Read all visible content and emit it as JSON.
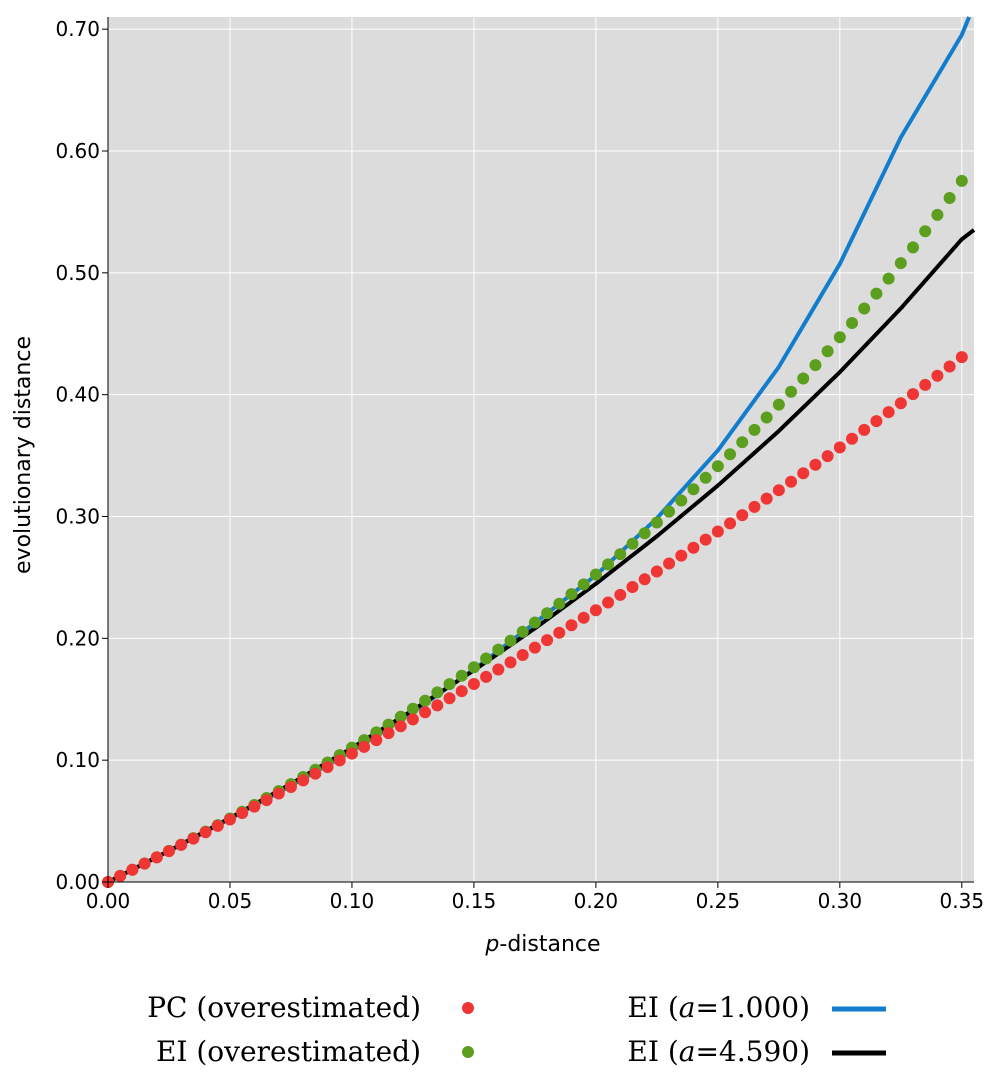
{
  "chart_data": {
    "type": "scatter",
    "title": "",
    "xlabel_italic": "p",
    "xlabel_rest": "-distance",
    "ylabel": "evolutionary distance",
    "xlim": [
      0,
      0.355
    ],
    "ylim": [
      0,
      0.71
    ],
    "x_ticks": [
      "0.00",
      "0.05",
      "0.10",
      "0.15",
      "0.20",
      "0.25",
      "0.30",
      "0.35"
    ],
    "y_ticks": [
      "0.00",
      "0.10",
      "0.20",
      "0.30",
      "0.40",
      "0.50",
      "0.60",
      "0.70"
    ],
    "grid": true,
    "legend_placement": "bottom",
    "series": [
      {
        "name": "PC (overestimated)",
        "kind": "points",
        "color": "#f03535",
        "x": [
          0.0,
          0.005,
          0.01,
          0.015,
          0.02,
          0.025,
          0.03,
          0.035,
          0.04,
          0.045,
          0.05,
          0.055,
          0.06,
          0.065,
          0.07,
          0.075,
          0.08,
          0.085,
          0.09,
          0.095,
          0.1,
          0.105,
          0.11,
          0.115,
          0.12,
          0.125,
          0.13,
          0.135,
          0.14,
          0.145,
          0.15,
          0.155,
          0.16,
          0.165,
          0.17,
          0.175,
          0.18,
          0.185,
          0.19,
          0.195,
          0.2,
          0.205,
          0.21,
          0.215,
          0.22,
          0.225,
          0.23,
          0.235,
          0.24,
          0.245,
          0.25,
          0.255,
          0.26,
          0.265,
          0.27,
          0.275,
          0.28,
          0.285,
          0.29,
          0.295,
          0.3,
          0.305,
          0.31,
          0.315,
          0.32,
          0.325,
          0.33,
          0.335,
          0.34,
          0.345,
          0.35
        ],
        "y": [
          0.0,
          0.005,
          0.0101,
          0.0151,
          0.0202,
          0.0253,
          0.0305,
          0.0356,
          0.0408,
          0.0461,
          0.0513,
          0.0566,
          0.0619,
          0.0672,
          0.0726,
          0.078,
          0.0834,
          0.0889,
          0.0943,
          0.0998,
          0.1054,
          0.1109,
          0.1165,
          0.1222,
          0.1278,
          0.1335,
          0.1393,
          0.145,
          0.1508,
          0.1567,
          0.1625,
          0.1684,
          0.1744,
          0.1803,
          0.1863,
          0.1924,
          0.1985,
          0.2046,
          0.2107,
          0.2169,
          0.2231,
          0.2294,
          0.2357,
          0.2421,
          0.2485,
          0.2549,
          0.2614,
          0.2679,
          0.2744,
          0.281,
          0.2877,
          0.2944,
          0.3011,
          0.3079,
          0.3147,
          0.3216,
          0.3285,
          0.3355,
          0.3425,
          0.3496,
          0.3567,
          0.3638,
          0.3711,
          0.3783,
          0.3857,
          0.393,
          0.4005,
          0.408,
          0.4155,
          0.4231,
          0.4308
        ]
      },
      {
        "name": "EI (overestimated)",
        "kind": "points",
        "color": "#5c9e1e",
        "x": [
          0.0,
          0.005,
          0.01,
          0.015,
          0.02,
          0.025,
          0.03,
          0.035,
          0.04,
          0.045,
          0.05,
          0.055,
          0.06,
          0.065,
          0.07,
          0.075,
          0.08,
          0.085,
          0.09,
          0.095,
          0.1,
          0.105,
          0.11,
          0.115,
          0.12,
          0.125,
          0.13,
          0.135,
          0.14,
          0.145,
          0.15,
          0.155,
          0.16,
          0.165,
          0.17,
          0.175,
          0.18,
          0.185,
          0.19,
          0.195,
          0.2,
          0.205,
          0.21,
          0.215,
          0.22,
          0.225,
          0.23,
          0.235,
          0.24,
          0.245,
          0.25,
          0.255,
          0.26,
          0.265,
          0.27,
          0.275,
          0.28,
          0.285,
          0.29,
          0.295,
          0.3,
          0.305,
          0.31,
          0.315,
          0.32,
          0.325,
          0.33,
          0.335,
          0.34,
          0.345,
          0.35
        ],
        "y": [
          0.0,
          0.005,
          0.0101,
          0.0152,
          0.0203,
          0.0255,
          0.0307,
          0.036,
          0.0413,
          0.0467,
          0.0521,
          0.0577,
          0.0632,
          0.0689,
          0.0746,
          0.0803,
          0.0862,
          0.0921,
          0.0981,
          0.1041,
          0.1103,
          0.1165,
          0.1228,
          0.1292,
          0.1356,
          0.1422,
          0.1488,
          0.1556,
          0.1624,
          0.1693,
          0.1763,
          0.1834,
          0.1907,
          0.198,
          0.2054,
          0.213,
          0.2206,
          0.2284,
          0.2363,
          0.2443,
          0.2524,
          0.2607,
          0.2691,
          0.2776,
          0.2863,
          0.2951,
          0.304,
          0.3131,
          0.3224,
          0.3318,
          0.3413,
          0.3511,
          0.361,
          0.3711,
          0.3813,
          0.3918,
          0.4024,
          0.4133,
          0.4243,
          0.4356,
          0.4471,
          0.4588,
          0.4707,
          0.4829,
          0.4953,
          0.508,
          0.5209,
          0.5341,
          0.5476,
          0.5614,
          0.5755
        ]
      },
      {
        "name": "EI (a=1.000)",
        "legend_prefix": "EI (",
        "legend_param": "a",
        "legend_value": "=1.000)",
        "kind": "line",
        "color": "#127dcc",
        "x": [
          0.0,
          0.025,
          0.05,
          0.075,
          0.1,
          0.125,
          0.15,
          0.175,
          0.2,
          0.225,
          0.25,
          0.275,
          0.3,
          0.325,
          0.35,
          0.353
        ],
        "y": [
          0.0,
          0.0254,
          0.0518,
          0.0791,
          0.1073,
          0.1393,
          0.1746,
          0.2127,
          0.2518,
          0.2985,
          0.3542,
          0.4228,
          0.5073,
          0.6112,
          0.6953,
          0.71
        ]
      },
      {
        "name": "EI (a=4.590)",
        "legend_prefix": "EI (",
        "legend_param": "a",
        "legend_value": "=4.590)",
        "kind": "line",
        "color": "#000000",
        "x": [
          0.0,
          0.025,
          0.05,
          0.075,
          0.1,
          0.125,
          0.15,
          0.175,
          0.2,
          0.225,
          0.25,
          0.275,
          0.3,
          0.325,
          0.35,
          0.355
        ],
        "y": [
          0.0,
          0.0256,
          0.0525,
          0.0806,
          0.1101,
          0.1411,
          0.1737,
          0.2082,
          0.2448,
          0.2838,
          0.3254,
          0.3702,
          0.4185,
          0.4708,
          0.5276,
          0.5352
        ]
      }
    ]
  }
}
